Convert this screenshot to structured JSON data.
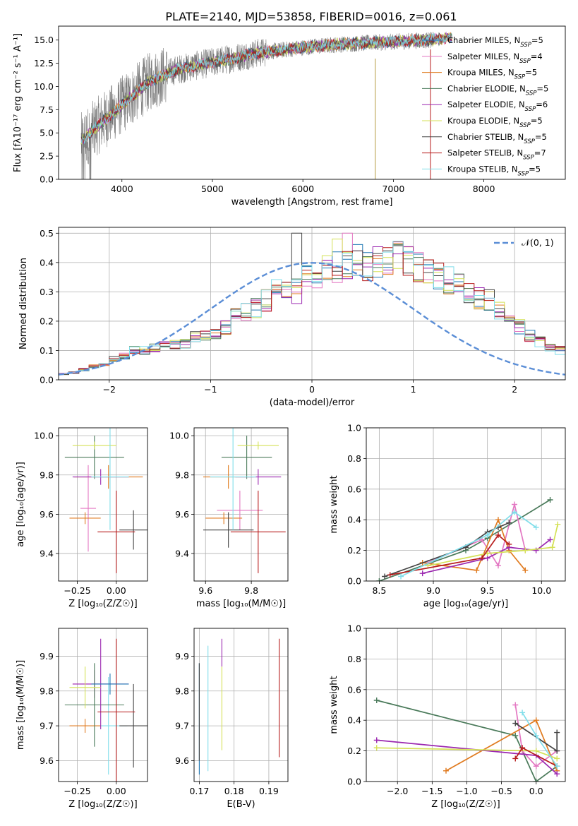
{
  "figure": {
    "title": "PLATE=2140, MJD=53858, FIBERID=0016, z=0.061"
  },
  "chart_data": [
    {
      "type": "line",
      "id": "spectrum",
      "xlabel": "wavelength [Angstrom, rest frame]",
      "ylabel": "Flux [fλ10⁻¹⁷ erg cm⁻² s⁻¹ A⁻¹]",
      "xlim": [
        3300,
        8900
      ],
      "ylim": [
        0,
        16.5
      ],
      "xticks": [
        4000,
        5000,
        6000,
        7000,
        8000
      ],
      "yticks": [
        0.0,
        2.5,
        5.0,
        7.5,
        10.0,
        12.5,
        15.0
      ],
      "grid": false,
      "legend": "right",
      "data_spectrum": {
        "x_range": [
          3550,
          7450
        ],
        "continuum_x": [
          3550,
          3700,
          4000,
          4300,
          4600,
          5000,
          5500,
          6000,
          6500,
          7000,
          7400
        ],
        "continuum_y": [
          4.0,
          5.5,
          8.0,
          10.5,
          11.8,
          12.6,
          13.6,
          14.2,
          14.6,
          14.8,
          15.0
        ]
      },
      "model": {
        "x": [
          3550,
          3700,
          4000,
          4300,
          4600,
          5000,
          5500,
          6000,
          6500,
          7000,
          7500,
          7650
        ],
        "y": [
          4.0,
          5.5,
          8.0,
          10.5,
          11.8,
          12.6,
          13.6,
          14.2,
          14.6,
          14.8,
          15.1,
          15.3
        ]
      },
      "series": [
        {
          "name": "Chabrier MILES, N",
          "sub": "SSP",
          "suffix": "=5",
          "color": "#1f77b4"
        },
        {
          "name": "Salpeter MILES, N",
          "sub": "SSP",
          "suffix": "=4",
          "color": "#e377c2"
        },
        {
          "name": "Kroupa MILES, N",
          "sub": "SSP",
          "suffix": "=5",
          "color": "#e07b20"
        },
        {
          "name": "Chabrier ELODIE, N",
          "sub": "SSP",
          "suffix": "=5",
          "color": "#4a7a5a"
        },
        {
          "name": "Salpeter ELODIE, N",
          "sub": "SSP",
          "suffix": "=6",
          "color": "#9b27b0"
        },
        {
          "name": "Kroupa ELODIE, N",
          "sub": "SSP",
          "suffix": "=5",
          "color": "#d4e157"
        },
        {
          "name": "Chabrier STELIB, N",
          "sub": "SSP",
          "suffix": "=5",
          "color": "#444444"
        },
        {
          "name": "Salpeter STELIB, N",
          "sub": "SSP",
          "suffix": "=7",
          "color": "#b71c1c"
        },
        {
          "name": "Kroupa STELIB, N",
          "sub": "SSP",
          "suffix": "=5",
          "color": "#80deea"
        }
      ]
    },
    {
      "type": "bar",
      "id": "residuals",
      "xlabel": "(data-model)/error",
      "ylabel": "Normed distribution",
      "xlim": [
        -2.5,
        2.5
      ],
      "ylim": [
        0,
        0.52
      ],
      "xticks": [
        -2,
        -1,
        0,
        1,
        2
      ],
      "yticks": [
        0.0,
        0.1,
        0.2,
        0.3,
        0.4,
        0.5
      ],
      "grid": true,
      "legend": "top-right",
      "gaussian_label": "𝒩(0, 1)",
      "gaussian_color": "#5b8ed6",
      "bin_edges_start": -2.5,
      "bin_width": 0.1,
      "hist_base": [
        0.02,
        0.025,
        0.035,
        0.045,
        0.055,
        0.07,
        0.08,
        0.1,
        0.1,
        0.11,
        0.115,
        0.12,
        0.125,
        0.145,
        0.15,
        0.16,
        0.18,
        0.22,
        0.23,
        0.245,
        0.27,
        0.3,
        0.32,
        0.33,
        0.35,
        0.36,
        0.38,
        0.385,
        0.39,
        0.41,
        0.39,
        0.4,
        0.41,
        0.42,
        0.4,
        0.385,
        0.37,
        0.36,
        0.34,
        0.33,
        0.3,
        0.28,
        0.27,
        0.24,
        0.2,
        0.18,
        0.15,
        0.13,
        0.11,
        0.1,
        0.075,
        0.065,
        0.06,
        0.05,
        0.045,
        0.04,
        0.035,
        0.03,
        0.03,
        0.025
      ]
    },
    {
      "type": "scatter",
      "id": "age-vs-Z",
      "xlabel": "Z [log₁₀(Z/Z☉)]",
      "ylabel": "age  [log₁₀(age/yr)]",
      "xlim": [
        -0.37,
        0.2
      ],
      "ylim": [
        9.26,
        10.04
      ],
      "xticks": [
        -0.25,
        0.0
      ],
      "xticklabels": [
        "−0.25",
        "0.00"
      ],
      "yticks": [
        9.4,
        9.6,
        9.8,
        10.0
      ],
      "grid": true,
      "points": [
        {
          "x": -0.05,
          "y": 9.79,
          "xe": 0.22,
          "ye": 0.06,
          "c": 2
        },
        {
          "x": -0.18,
          "y": 9.63,
          "xe": 0.05,
          "ye": 0.22,
          "c": 1
        },
        {
          "x": -0.2,
          "y": 9.58,
          "xe": 0.1,
          "ye": 0.03,
          "c": 2
        },
        {
          "x": -0.14,
          "y": 9.89,
          "xe": 0.19,
          "ye": 0.11,
          "c": 3
        },
        {
          "x": -0.1,
          "y": 9.79,
          "xe": 0.18,
          "ye": 0.04,
          "c": 4
        },
        {
          "x": -0.14,
          "y": 9.95,
          "xe": 0.14,
          "ye": 0.02,
          "c": 5
        },
        {
          "x": 0.11,
          "y": 9.52,
          "xe": 0.09,
          "ye": 0.1,
          "c": 6
        },
        {
          "x": 0.0,
          "y": 9.51,
          "xe": 0.12,
          "ye": 0.21,
          "c": 7
        },
        {
          "x": -0.04,
          "y": 9.79,
          "xe": 0.12,
          "ye": 0.27,
          "c": 8
        }
      ]
    },
    {
      "type": "scatter",
      "id": "age-vs-mass",
      "xlabel": "mass [log₁₀(M/M☉)]",
      "ylabel": "",
      "xlim": [
        9.55,
        9.96
      ],
      "ylim": [
        9.26,
        10.04
      ],
      "xticks": [
        9.6,
        9.8
      ],
      "yticks": [
        9.4,
        9.6,
        9.8,
        10.0
      ],
      "grid": true,
      "points": [
        {
          "x": 9.7,
          "y": 9.79,
          "xe": 0.11,
          "ye": 0.06,
          "c": 2
        },
        {
          "x": 9.75,
          "y": 9.62,
          "xe": 0.1,
          "ye": 0.1,
          "c": 1
        },
        {
          "x": 9.68,
          "y": 9.58,
          "xe": 0.08,
          "ye": 0.03,
          "c": 2
        },
        {
          "x": 9.78,
          "y": 9.89,
          "xe": 0.11,
          "ye": 0.11,
          "c": 3
        },
        {
          "x": 9.83,
          "y": 9.79,
          "xe": 0.1,
          "ye": 0.04,
          "c": 4
        },
        {
          "x": 9.83,
          "y": 9.95,
          "xe": 0.09,
          "ye": 0.02,
          "c": 5
        },
        {
          "x": 9.7,
          "y": 9.52,
          "xe": 0.11,
          "ye": 0.09,
          "c": 6
        },
        {
          "x": 9.83,
          "y": 9.51,
          "xe": 0.12,
          "ye": 0.21,
          "c": 7
        },
        {
          "x": 9.72,
          "y": 9.79,
          "xe": 0.1,
          "ye": 0.27,
          "c": 8
        }
      ]
    },
    {
      "type": "line",
      "id": "mass-weight-vs-age",
      "xlabel": "age  [log₁₀(age/yr)]",
      "ylabel": "mass weight",
      "xlim": [
        8.38,
        10.22
      ],
      "ylim": [
        0,
        1.0
      ],
      "xticks": [
        8.5,
        9.0,
        9.5,
        10.0
      ],
      "yticks": [
        0.0,
        0.2,
        0.4,
        0.6,
        0.8,
        1.0
      ],
      "grid": true,
      "series": [
        {
          "c": 3,
          "x": [
            8.5,
            9.3,
            9.5,
            10.08
          ],
          "y": [
            0.0,
            0.2,
            0.28,
            0.53
          ]
        },
        {
          "c": 1,
          "x": [
            8.95,
            9.45,
            9.6,
            9.75,
            9.85
          ],
          "y": [
            0.12,
            0.27,
            0.1,
            0.5,
            0.2
          ]
        },
        {
          "c": 2,
          "x": [
            8.9,
            9.4,
            9.6,
            9.7,
            9.85
          ],
          "y": [
            0.12,
            0.07,
            0.4,
            0.2,
            0.07
          ]
        },
        {
          "c": 4,
          "x": [
            8.9,
            9.5,
            9.7,
            9.95,
            10.08
          ],
          "y": [
            0.05,
            0.15,
            0.22,
            0.2,
            0.27
          ]
        },
        {
          "c": 5,
          "x": [
            8.95,
            9.5,
            9.85,
            10.1,
            10.15
          ],
          "y": [
            0.1,
            0.18,
            0.2,
            0.22,
            0.37
          ]
        },
        {
          "c": 6,
          "x": [
            8.55,
            9.3,
            9.5,
            9.6,
            9.7
          ],
          "y": [
            0.03,
            0.22,
            0.32,
            0.35,
            0.38
          ]
        },
        {
          "c": 7,
          "x": [
            8.6,
            9.45,
            9.6,
            9.7
          ],
          "y": [
            0.04,
            0.15,
            0.3,
            0.24
          ]
        },
        {
          "c": 8,
          "x": [
            8.7,
            9.5,
            9.75,
            9.95
          ],
          "y": [
            0.03,
            0.3,
            0.45,
            0.35
          ]
        }
      ]
    },
    {
      "type": "scatter",
      "id": "mass-vs-Z",
      "xlabel": "Z [log₁₀(Z/Z☉)]",
      "ylabel": "mass [log₁₀(M/M☉)]",
      "xlim": [
        -0.37,
        0.2
      ],
      "ylim": [
        9.54,
        9.98
      ],
      "xticks": [
        -0.25,
        0.0
      ],
      "xticklabels": [
        "−0.25",
        "0.00"
      ],
      "yticks": [
        9.6,
        9.7,
        9.8,
        9.9
      ],
      "grid": true,
      "points": [
        {
          "x": -0.05,
          "y": 9.7,
          "xe": 0.12,
          "ye": 0.14,
          "c": 8
        },
        {
          "x": -0.14,
          "y": 9.82,
          "xe": 0.14,
          "ye": 0.04,
          "c": 1
        },
        {
          "x": -0.2,
          "y": 9.7,
          "xe": 0.1,
          "ye": 0.02,
          "c": 2
        },
        {
          "x": -0.14,
          "y": 9.76,
          "xe": 0.19,
          "ye": 0.12,
          "c": 3
        },
        {
          "x": -0.1,
          "y": 9.82,
          "xe": 0.18,
          "ye": 0.13,
          "c": 4
        },
        {
          "x": -0.2,
          "y": 9.81,
          "xe": 0.1,
          "ye": 0.06,
          "c": 5
        },
        {
          "x": 0.11,
          "y": 9.7,
          "xe": 0.09,
          "ye": 0.12,
          "c": 6
        },
        {
          "x": 0.0,
          "y": 9.74,
          "xe": 0.12,
          "ye": 0.21,
          "c": 7
        },
        {
          "x": -0.04,
          "y": 9.82,
          "xe": 0.12,
          "ye": 0.03,
          "c": 0
        }
      ]
    },
    {
      "type": "scatter",
      "id": "mass-vs-EBV",
      "xlabel": "E(B-V)",
      "ylabel": "",
      "xlim": [
        0.1685,
        0.1955
      ],
      "ylim": [
        9.54,
        9.98
      ],
      "xticks": [
        0.17,
        0.18,
        0.19
      ],
      "yticks": [
        9.6,
        9.7,
        9.8,
        9.9
      ],
      "grid": true,
      "points": [
        {
          "x": 0.17,
          "y": 9.72,
          "xe": 0,
          "ye": 0.16,
          "c": 0
        },
        {
          "x": 0.17,
          "y": 9.74,
          "xe": 0,
          "ye": 0.14,
          "c": 6
        },
        {
          "x": 0.1725,
          "y": 9.75,
          "xe": 0,
          "ye": 0.18,
          "c": 8
        },
        {
          "x": 0.1765,
          "y": 9.91,
          "xe": 0,
          "ye": 0.04,
          "c": 4
        },
        {
          "x": 0.1765,
          "y": 9.75,
          "xe": 0,
          "ye": 0.12,
          "c": 5
        },
        {
          "x": 0.193,
          "y": 9.78,
          "xe": 0,
          "ye": 0.17,
          "c": 7
        }
      ]
    },
    {
      "type": "line",
      "id": "mass-weight-vs-Z",
      "xlabel": "Z [log₁₀(Z/Z☉)]",
      "ylabel": "mass weight",
      "xlim": [
        -2.45,
        0.42
      ],
      "ylim": [
        0,
        1.0
      ],
      "xticks": [
        -2.0,
        -1.5,
        -1.0,
        -0.5,
        0.0
      ],
      "xticklabels": [
        "−2.0",
        "−1.5",
        "−1.0",
        "−0.5",
        "0.0"
      ],
      "yticks": [
        0.0,
        0.2,
        0.4,
        0.6,
        0.8,
        1.0
      ],
      "grid": true,
      "series": [
        {
          "c": 3,
          "x": [
            -2.3,
            -0.3,
            0.0,
            0.3
          ],
          "y": [
            0.53,
            0.3,
            0.0,
            0.1
          ]
        },
        {
          "c": 1,
          "x": [
            -0.3,
            -0.2,
            0.0,
            0.3
          ],
          "y": [
            0.5,
            0.2,
            0.1,
            0.2
          ]
        },
        {
          "c": 2,
          "x": [
            -1.3,
            0.0,
            0.3
          ],
          "y": [
            0.07,
            0.4,
            0.07
          ]
        },
        {
          "c": 4,
          "x": [
            -2.3,
            0.0,
            0.3
          ],
          "y": [
            0.27,
            0.17,
            0.05
          ]
        },
        {
          "c": 5,
          "x": [
            -2.3,
            0.0,
            0.3
          ],
          "y": [
            0.22,
            0.2,
            0.15
          ]
        },
        {
          "c": 6,
          "x": [
            -0.3,
            0.3,
            0.3
          ],
          "y": [
            0.38,
            0.2,
            0.32
          ]
        },
        {
          "c": 7,
          "x": [
            -0.3,
            -0.2,
            0.3
          ],
          "y": [
            0.15,
            0.22,
            0.1
          ]
        },
        {
          "c": 8,
          "x": [
            -0.2,
            0.0,
            0.3
          ],
          "y": [
            0.45,
            0.3,
            0.1
          ]
        }
      ]
    }
  ]
}
